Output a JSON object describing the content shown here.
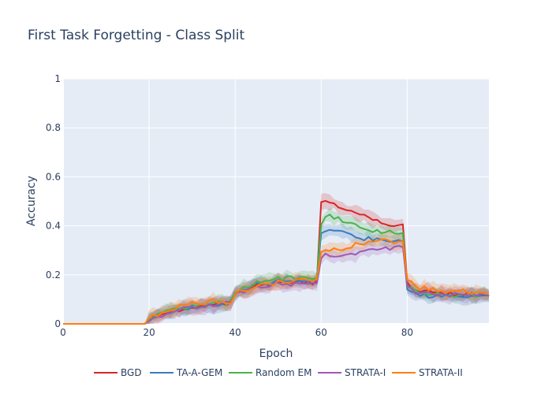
{
  "chart_data": {
    "type": "line",
    "title": "First Task Forgetting - Class Split",
    "xlabel": "Epoch",
    "ylabel": "Accuracy",
    "xlim": [
      0,
      99
    ],
    "ylim": [
      0,
      1
    ],
    "x_ticks": [
      0,
      20,
      40,
      60,
      80
    ],
    "y_ticks": [
      0,
      0.2,
      0.4,
      0.6,
      0.8,
      1
    ],
    "y_tick_labels": [
      "0",
      "0.2",
      "0.4",
      "0.6",
      "0.8",
      "1"
    ],
    "grid": true,
    "legend_position": "bottom",
    "series": [
      {
        "name": "BGD",
        "color": "#d62728",
        "points": [
          [
            0,
            0
          ],
          [
            19,
            0
          ],
          [
            20,
            0.02
          ],
          [
            25,
            0.05
          ],
          [
            30,
            0.07
          ],
          [
            35,
            0.08
          ],
          [
            39,
            0.09
          ],
          [
            40,
            0.13
          ],
          [
            45,
            0.15
          ],
          [
            50,
            0.165
          ],
          [
            55,
            0.17
          ],
          [
            59,
            0.17
          ],
          [
            60,
            0.5
          ],
          [
            62,
            0.49
          ],
          [
            65,
            0.47
          ],
          [
            70,
            0.44
          ],
          [
            75,
            0.41
          ],
          [
            79,
            0.405
          ],
          [
            80,
            0.16
          ],
          [
            82,
            0.135
          ],
          [
            85,
            0.13
          ],
          [
            90,
            0.125
          ],
          [
            95,
            0.12
          ],
          [
            99,
            0.12
          ]
        ]
      },
      {
        "name": "TA-A-GEM",
        "color": "#3a7bbf",
        "points": [
          [
            0,
            0
          ],
          [
            19,
            0
          ],
          [
            20,
            0.02
          ],
          [
            25,
            0.05
          ],
          [
            30,
            0.065
          ],
          [
            35,
            0.075
          ],
          [
            39,
            0.085
          ],
          [
            40,
            0.13
          ],
          [
            45,
            0.16
          ],
          [
            50,
            0.175
          ],
          [
            55,
            0.175
          ],
          [
            59,
            0.175
          ],
          [
            60,
            0.36
          ],
          [
            62,
            0.39
          ],
          [
            65,
            0.37
          ],
          [
            70,
            0.35
          ],
          [
            75,
            0.34
          ],
          [
            79,
            0.345
          ],
          [
            80,
            0.14
          ],
          [
            82,
            0.12
          ],
          [
            85,
            0.115
          ],
          [
            90,
            0.11
          ],
          [
            95,
            0.11
          ],
          [
            99,
            0.115
          ]
        ]
      },
      {
        "name": "Random EM",
        "color": "#4bb04f",
        "points": [
          [
            0,
            0
          ],
          [
            19,
            0
          ],
          [
            20,
            0.02
          ],
          [
            25,
            0.055
          ],
          [
            30,
            0.07
          ],
          [
            35,
            0.08
          ],
          [
            39,
            0.09
          ],
          [
            40,
            0.135
          ],
          [
            45,
            0.17
          ],
          [
            50,
            0.185
          ],
          [
            55,
            0.185
          ],
          [
            59,
            0.18
          ],
          [
            60,
            0.41
          ],
          [
            61,
            0.44
          ],
          [
            65,
            0.425
          ],
          [
            70,
            0.39
          ],
          [
            75,
            0.375
          ],
          [
            79,
            0.365
          ],
          [
            80,
            0.16
          ],
          [
            82,
            0.13
          ],
          [
            85,
            0.125
          ],
          [
            90,
            0.12
          ],
          [
            95,
            0.115
          ],
          [
            99,
            0.12
          ]
        ]
      },
      {
        "name": "STRATA-I",
        "color": "#9b59b6",
        "points": [
          [
            0,
            0
          ],
          [
            19,
            0
          ],
          [
            20,
            0.02
          ],
          [
            25,
            0.05
          ],
          [
            30,
            0.065
          ],
          [
            35,
            0.075
          ],
          [
            39,
            0.085
          ],
          [
            40,
            0.12
          ],
          [
            45,
            0.145
          ],
          [
            50,
            0.16
          ],
          [
            55,
            0.165
          ],
          [
            59,
            0.165
          ],
          [
            60,
            0.27
          ],
          [
            62,
            0.285
          ],
          [
            65,
            0.28
          ],
          [
            70,
            0.3
          ],
          [
            75,
            0.305
          ],
          [
            79,
            0.32
          ],
          [
            80,
            0.15
          ],
          [
            82,
            0.13
          ],
          [
            85,
            0.125
          ],
          [
            90,
            0.12
          ],
          [
            95,
            0.12
          ],
          [
            99,
            0.12
          ]
        ]
      },
      {
        "name": "STRATA-II",
        "color": "#ff7f0e",
        "points": [
          [
            0,
            0
          ],
          [
            19,
            0
          ],
          [
            20,
            0.02
          ],
          [
            25,
            0.06
          ],
          [
            30,
            0.08
          ],
          [
            35,
            0.09
          ],
          [
            39,
            0.09
          ],
          [
            40,
            0.125
          ],
          [
            45,
            0.155
          ],
          [
            50,
            0.17
          ],
          [
            55,
            0.175
          ],
          [
            59,
            0.175
          ],
          [
            60,
            0.29
          ],
          [
            62,
            0.305
          ],
          [
            65,
            0.31
          ],
          [
            70,
            0.33
          ],
          [
            75,
            0.34
          ],
          [
            79,
            0.335
          ],
          [
            80,
            0.18
          ],
          [
            82,
            0.15
          ],
          [
            85,
            0.14
          ],
          [
            90,
            0.135
          ],
          [
            95,
            0.13
          ],
          [
            99,
            0.13
          ]
        ]
      }
    ]
  }
}
